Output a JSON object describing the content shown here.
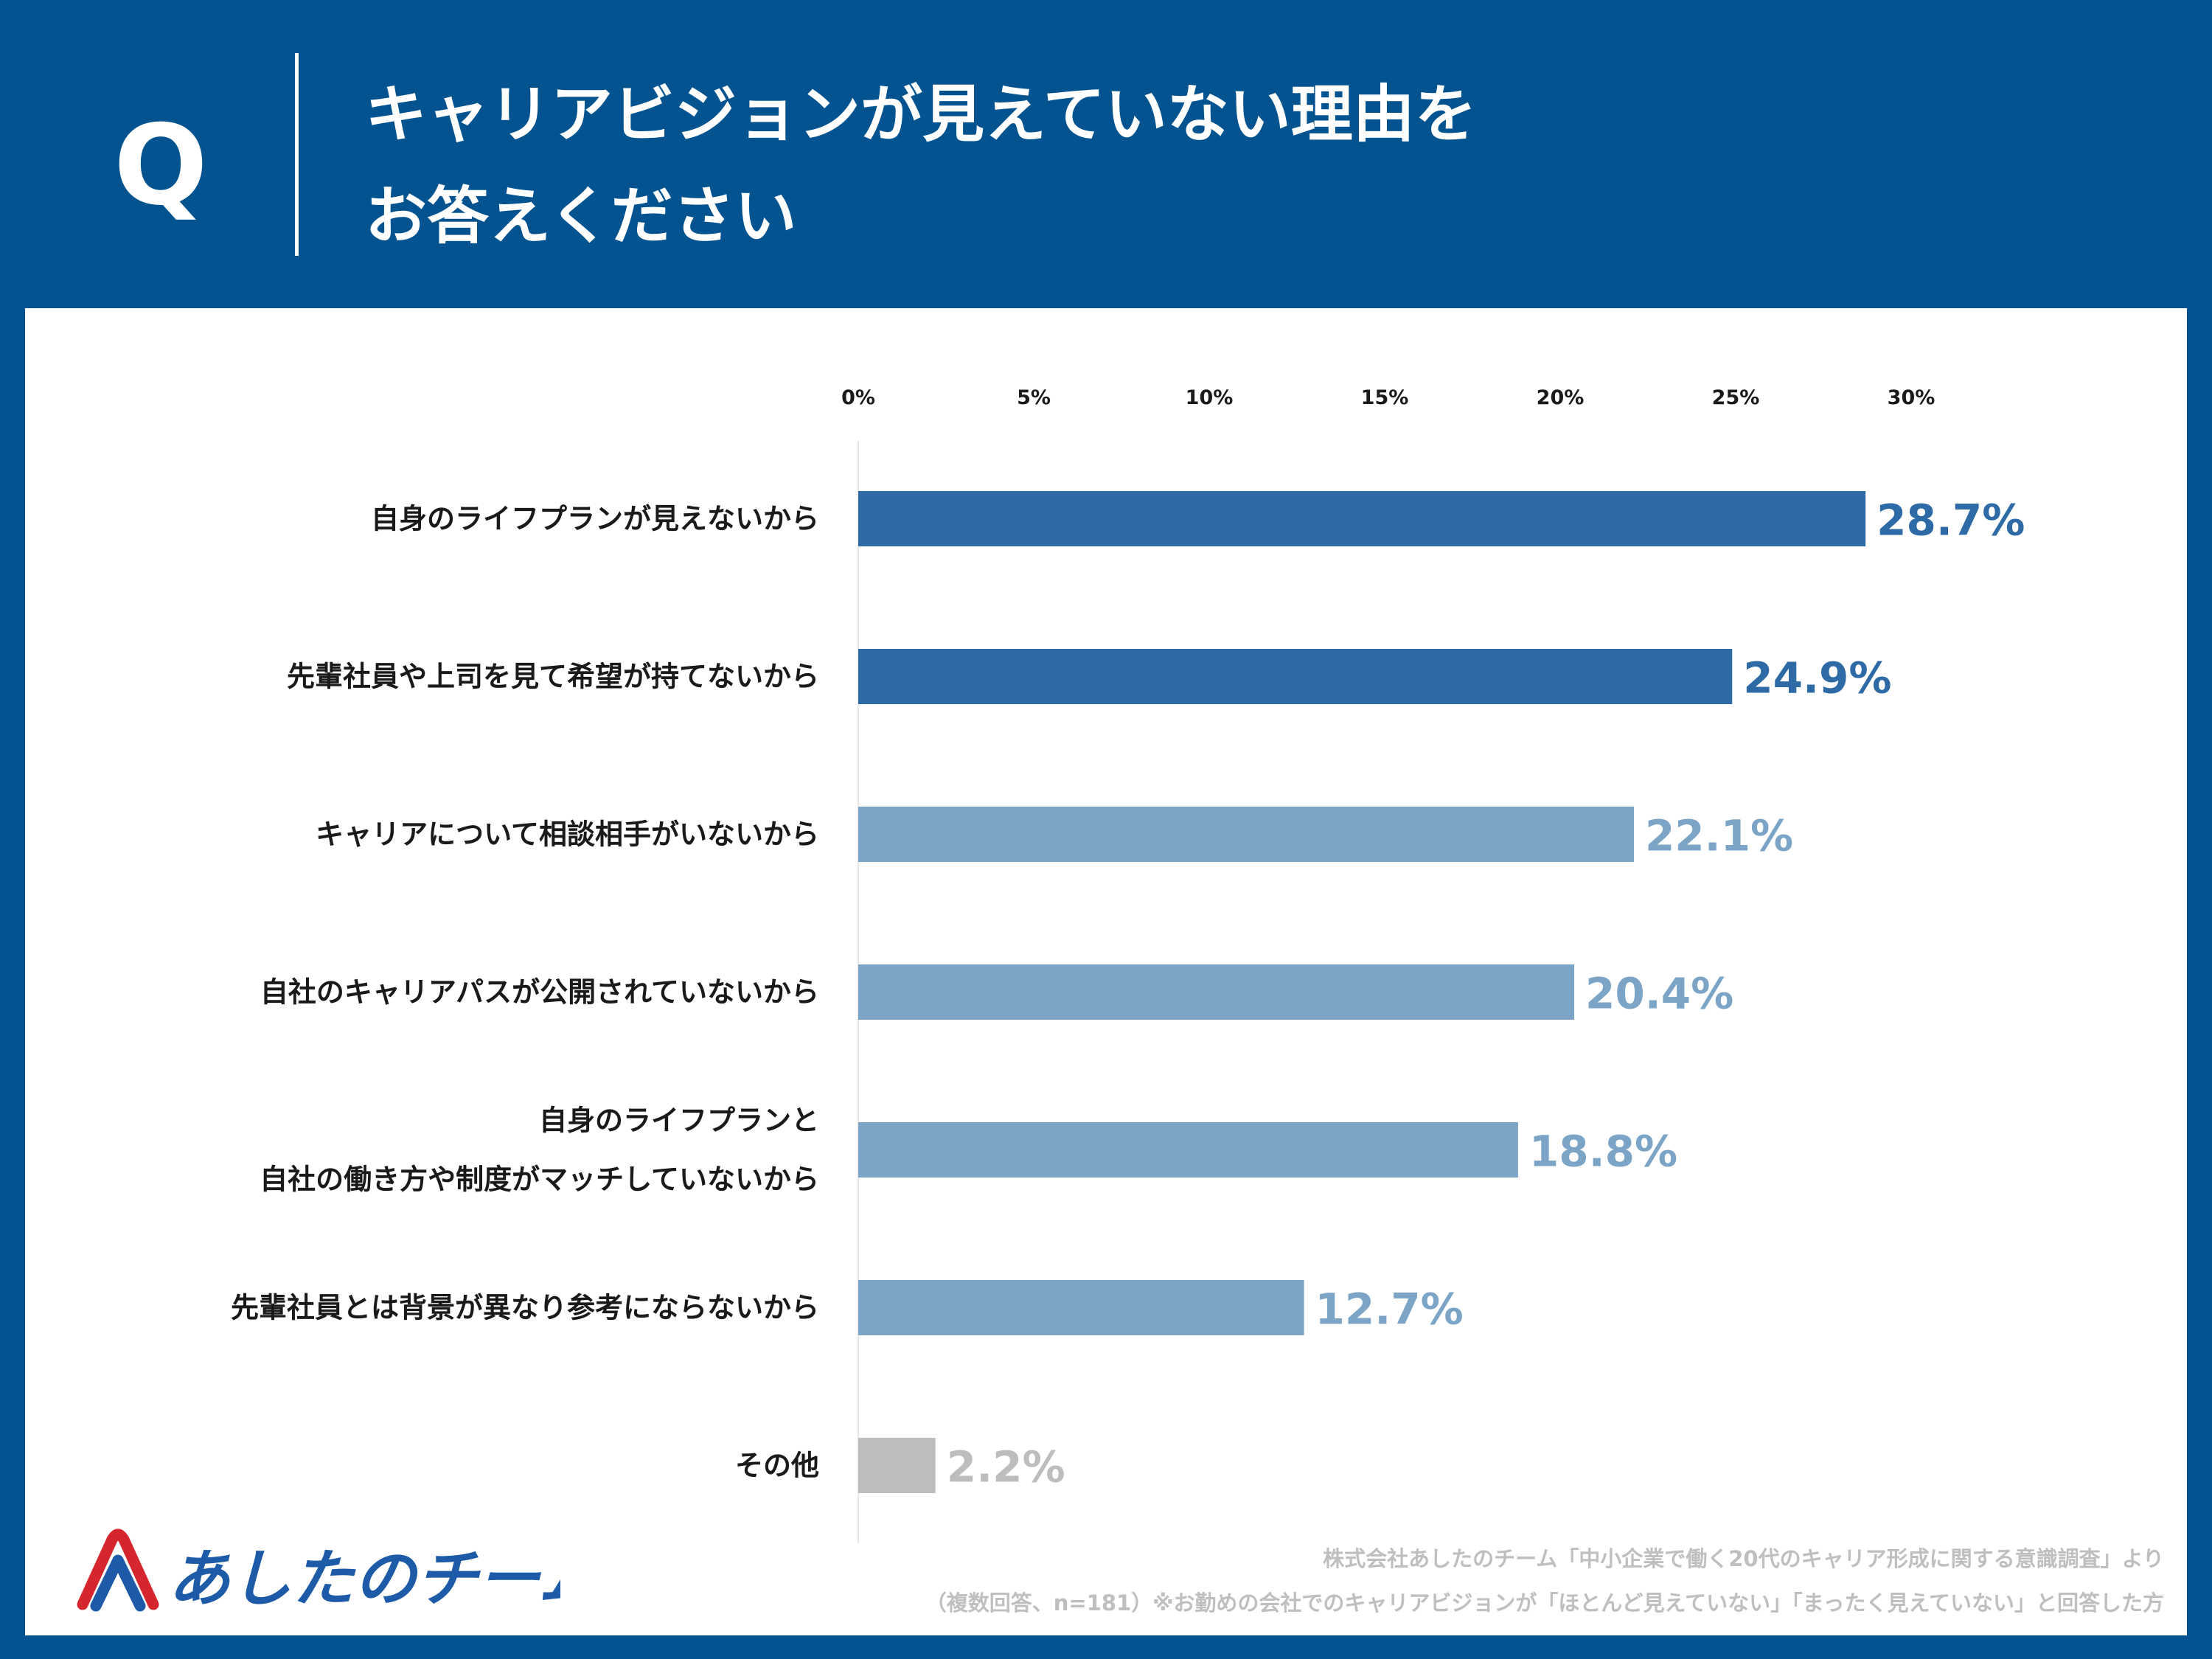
{
  "header": {
    "q_label": "Q",
    "title_line1": "キャリアビジョンが見えていない理由を",
    "title_line2": "お答えください"
  },
  "chart_data": {
    "type": "bar",
    "orientation": "horizontal",
    "title": "キャリアビジョンが見えていない理由をお答えください",
    "xlim": [
      0,
      30
    ],
    "ticks": [
      0,
      5,
      10,
      15,
      20,
      25,
      30
    ],
    "tick_labels": [
      "0%",
      "5%",
      "10%",
      "15%",
      "20%",
      "25%",
      "30%"
    ],
    "categories": [
      [
        "自身のライフプランが見えないから"
      ],
      [
        "先輩社員や上司を見て希望が持てないから"
      ],
      [
        "キャリアについて相談相手がいないから"
      ],
      [
        "自社のキャリアパスが公開されていないから"
      ],
      [
        "自身のライフプランと",
        "自社の働き方や制度がマッチしていないから"
      ],
      [
        "先輩社員とは背景が異なり参考にならないから"
      ],
      [
        "その他"
      ]
    ],
    "values": [
      28.7,
      24.9,
      22.1,
      20.4,
      18.8,
      12.7,
      2.2
    ],
    "value_labels": [
      "28.7%",
      "24.9%",
      "22.1%",
      "20.4%",
      "18.8%",
      "12.7%",
      "2.2%"
    ],
    "bar_colors": [
      "#2d6aa6",
      "#2d6aa6",
      "#7ba4c6",
      "#7ba4c6",
      "#7ba4c6",
      "#7ba4c6",
      "#bdbdbd"
    ],
    "grid": false
  },
  "logo": {
    "text": "あしたのチーム",
    "colors": {
      "red": "#d6262d",
      "blue": "#1d5aa8"
    }
  },
  "source": {
    "line1": "株式会社あしたのチーム「中小企業で働く20代のキャリア形成に関する意識調査」より",
    "line2": "（複数回答、n=181）※お勤めの会社でのキャリアビジョンが「ほとんど見えていない」「まったく見えていない」と回答した方"
  }
}
